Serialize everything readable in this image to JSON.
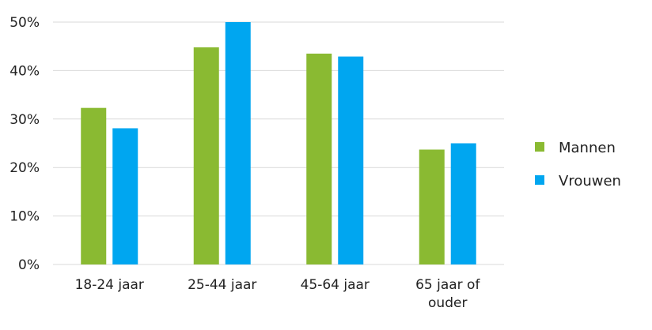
{
  "chart_data": {
    "type": "bar",
    "title": "",
    "xlabel": "",
    "ylabel": "",
    "categories": [
      "18-24 jaar",
      "25-44 jaar",
      "45-64 jaar",
      "65 jaar of ouder"
    ],
    "category_lines": [
      [
        "18-24 jaar"
      ],
      [
        "25-44 jaar"
      ],
      [
        "45-64 jaar"
      ],
      [
        "65 jaar of",
        "ouder"
      ]
    ],
    "series": [
      {
        "name": "Mannen",
        "color": "#8aba32",
        "values": [
          32.3,
          44.8,
          43.5,
          23.7
        ]
      },
      {
        "name": "Vrouwen",
        "color": "#00a6f0",
        "values": [
          28.1,
          50.0,
          42.9,
          25.0
        ]
      }
    ],
    "ylim": [
      0,
      50
    ],
    "yticks": [
      0,
      10,
      20,
      30,
      40,
      50
    ],
    "ytick_labels": [
      "0%",
      "10%",
      "20%",
      "30%",
      "40%",
      "50%"
    ],
    "grid": true,
    "grid_color": "#d9d9d9",
    "legend_position": "right"
  }
}
